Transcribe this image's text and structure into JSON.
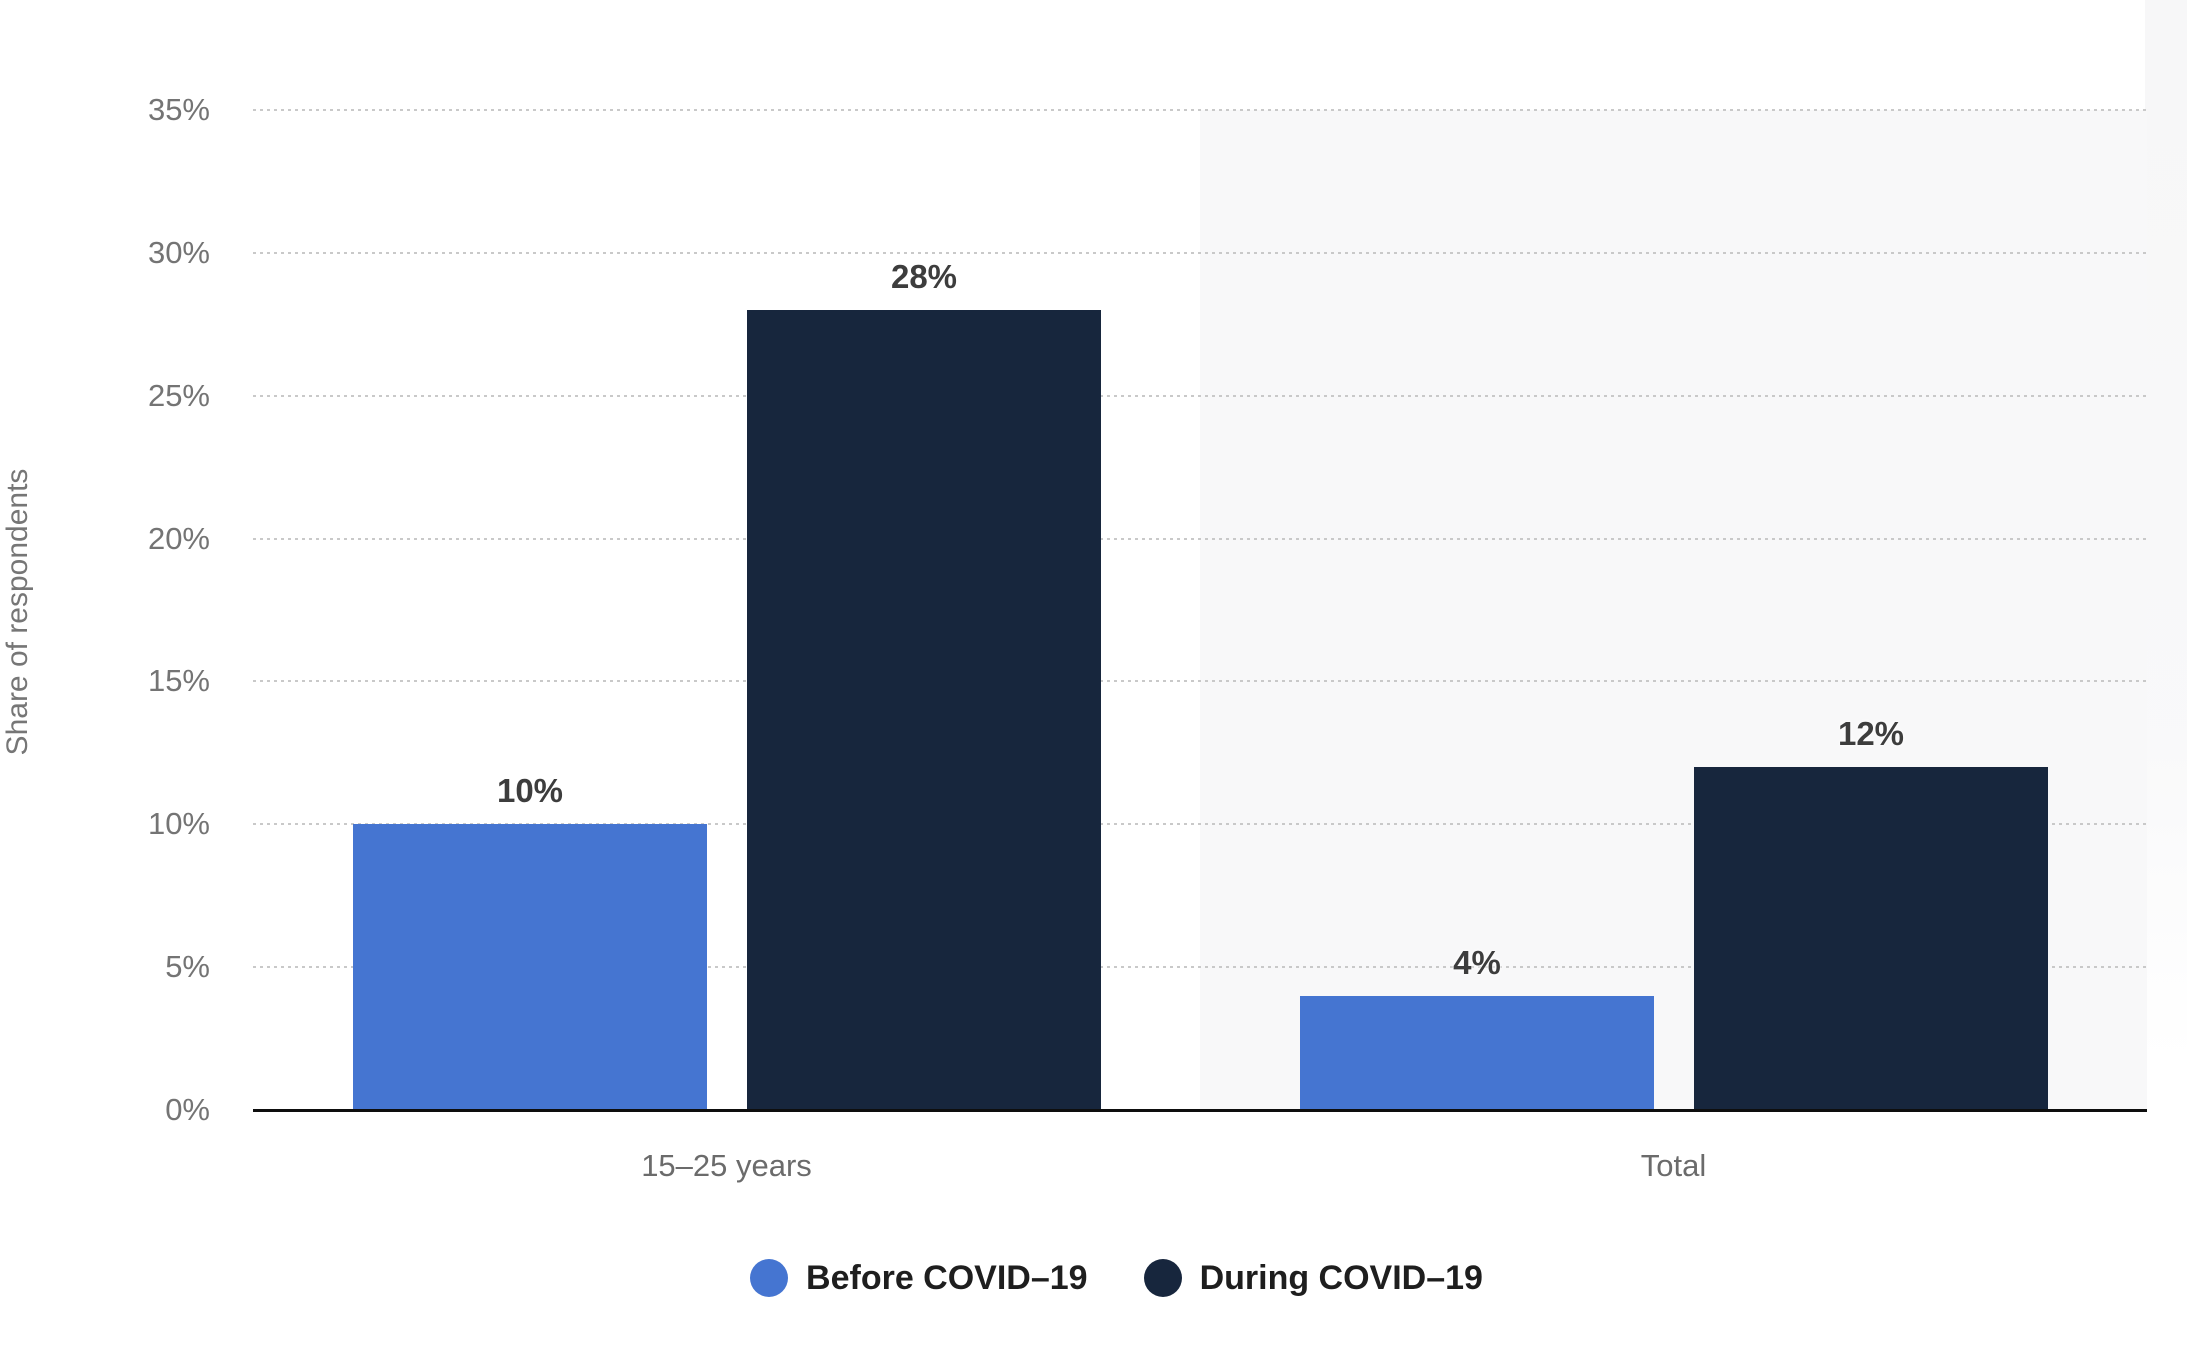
{
  "chart": {
    "y_axis_title": "Share of respondents"
  },
  "chart_data": {
    "type": "bar",
    "title": "",
    "xlabel": "",
    "ylabel": "Share of respondents",
    "categories": [
      "15–25 years",
      "Total"
    ],
    "series": [
      {
        "name": "Before COVID–19",
        "color": "#4575d1",
        "values": [
          10,
          4
        ]
      },
      {
        "name": "During COVID–19",
        "color": "#17263d",
        "values": [
          28,
          12
        ]
      }
    ],
    "data_labels": [
      [
        "10%",
        "4%"
      ],
      [
        "28%",
        "12%"
      ]
    ],
    "value_suffix": "%",
    "ylim": [
      0,
      35
    ],
    "ytick_step": 5,
    "ytick_labels": [
      "0%",
      "5%",
      "10%",
      "15%",
      "20%",
      "25%",
      "30%",
      "35%"
    ],
    "grid": "horizontal-dotted",
    "legend_position": "bottom",
    "highlighted_category": "Total",
    "colors": {
      "band": "#f8f8f9",
      "gridline": "#c9c9c9",
      "axis_line": "#0e0e0e",
      "tick_text": "#747474",
      "category_text": "#6b6b6b",
      "data_label_text": "#3d3d3d",
      "legend_text": "#1e1e1e"
    }
  }
}
